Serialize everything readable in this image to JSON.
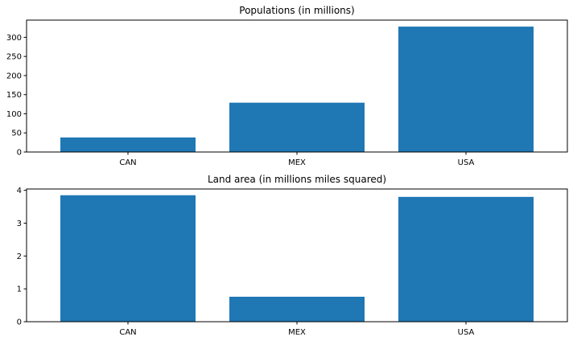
{
  "chart_data": [
    {
      "type": "bar",
      "title": "Populations (in millions)",
      "categories": [
        "CAN",
        "MEX",
        "USA"
      ],
      "values": [
        38,
        129,
        328
      ],
      "ylim": [
        0,
        345
      ],
      "yticks": [
        0,
        50,
        100,
        150,
        200,
        250,
        300
      ],
      "bar_color": "#1f77b4",
      "xlabel": "",
      "ylabel": "",
      "grid": false
    },
    {
      "type": "bar",
      "title": "Land area (in millions miles squared)",
      "categories": [
        "CAN",
        "MEX",
        "USA"
      ],
      "values": [
        3.85,
        0.76,
        3.8
      ],
      "ylim": [
        0,
        4.04
      ],
      "yticks": [
        0,
        1,
        2,
        3,
        4
      ],
      "bar_color": "#1f77b4",
      "xlabel": "",
      "ylabel": "",
      "grid": false
    }
  ]
}
